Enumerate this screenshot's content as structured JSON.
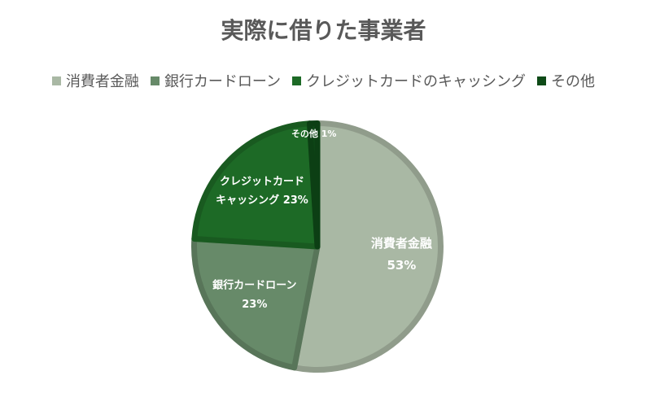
{
  "chart_data": {
    "type": "pie",
    "title": "実際に借りた事業者",
    "legend_position": "top",
    "categories": [
      "消費者金融",
      "銀行カードローン",
      "クレジットカードのキャッシング",
      "その他"
    ],
    "values": [
      53,
      23,
      23,
      1
    ],
    "value_labels": [
      "53%",
      "23%",
      "23%",
      "1%"
    ],
    "slice_labels": [
      [
        "消費者金融"
      ],
      [
        "銀行カードローン"
      ],
      [
        "クレジットカード",
        "キャッシング"
      ],
      [
        "その他"
      ]
    ],
    "colors": [
      "#a9b8a4",
      "#678a69",
      "#1d6a26",
      "#0e4a17"
    ]
  }
}
